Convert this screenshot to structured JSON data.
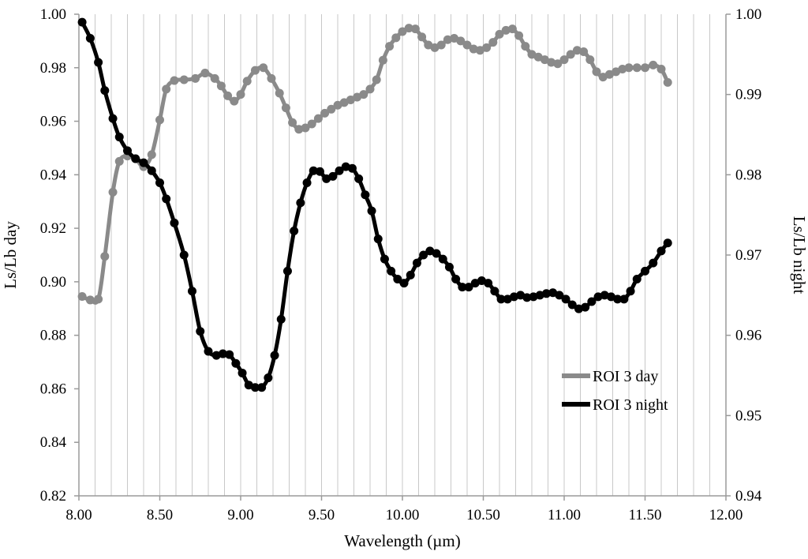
{
  "chart_data": {
    "type": "line",
    "xlabel": "Wavelength (µm)",
    "ylabel": "Ls/Lb day",
    "y2label": "Ls/Lb night",
    "xlim": [
      8.0,
      12.0
    ],
    "ylim": [
      0.82,
      1.0
    ],
    "y2lim": [
      0.94,
      1.0
    ],
    "x_ticks": [
      "8.00",
      "8.50",
      "9.00",
      "9.50",
      "10.00",
      "10.50",
      "11.00",
      "11.50",
      "12.00"
    ],
    "y_ticks": [
      "0.82",
      "0.84",
      "0.86",
      "0.88",
      "0.90",
      "0.92",
      "0.94",
      "0.96",
      "0.98",
      "1.00"
    ],
    "y2_ticks": [
      "0.94",
      "0.95",
      "0.96",
      "0.97",
      "0.98",
      "0.99",
      "1.00"
    ],
    "vertical_gridlines": true,
    "legend_position": "bottom-right",
    "series": [
      {
        "name": "ROI 3 day",
        "axis": "left",
        "color": "#8a8a8a",
        "x": [
          8.02,
          8.07,
          8.12,
          8.16,
          8.21,
          8.25,
          8.3,
          8.35,
          8.4,
          8.45,
          8.5,
          8.54,
          8.59,
          8.65,
          8.72,
          8.78,
          8.84,
          8.88,
          8.92,
          8.96,
          9.0,
          9.04,
          9.09,
          9.14,
          9.19,
          9.24,
          9.28,
          9.32,
          9.36,
          9.4,
          9.44,
          9.48,
          9.52,
          9.56,
          9.6,
          9.64,
          9.68,
          9.72,
          9.76,
          9.8,
          9.84,
          9.88,
          9.92,
          9.96,
          10.0,
          10.04,
          10.08,
          10.12,
          10.16,
          10.2,
          10.24,
          10.28,
          10.32,
          10.36,
          10.4,
          10.44,
          10.48,
          10.52,
          10.56,
          10.6,
          10.64,
          10.68,
          10.72,
          10.76,
          10.8,
          10.84,
          10.88,
          10.92,
          10.96,
          11.0,
          11.04,
          11.08,
          11.12,
          11.16,
          11.2,
          11.24,
          11.28,
          11.32,
          11.36,
          11.4,
          11.45,
          11.5,
          11.55,
          11.6,
          11.64
        ],
        "y": [
          0.8945,
          0.8932,
          0.8935,
          0.9095,
          0.9335,
          0.945,
          0.947,
          0.946,
          0.943,
          0.9475,
          0.9605,
          0.972,
          0.9752,
          0.9755,
          0.976,
          0.978,
          0.976,
          0.9732,
          0.9695,
          0.9675,
          0.97,
          0.975,
          0.979,
          0.98,
          0.976,
          0.9705,
          0.965,
          0.9595,
          0.957,
          0.9575,
          0.959,
          0.961,
          0.963,
          0.9645,
          0.966,
          0.967,
          0.968,
          0.969,
          0.97,
          0.972,
          0.9755,
          0.9828,
          0.988,
          0.9912,
          0.9935,
          0.9948,
          0.9945,
          0.9915,
          0.9885,
          0.9875,
          0.9885,
          0.9905,
          0.991,
          0.99,
          0.9885,
          0.987,
          0.9865,
          0.9875,
          0.9895,
          0.9925,
          0.994,
          0.9945,
          0.992,
          0.988,
          0.985,
          0.984,
          0.983,
          0.982,
          0.9815,
          0.983,
          0.985,
          0.9865,
          0.986,
          0.983,
          0.9785,
          0.9765,
          0.9775,
          0.9785,
          0.9795,
          0.98,
          0.98,
          0.98,
          0.981,
          0.9795,
          0.9745
        ]
      },
      {
        "name": "ROI 3 night",
        "axis": "right",
        "color": "#000000",
        "x": [
          8.02,
          8.07,
          8.12,
          8.16,
          8.21,
          8.25,
          8.3,
          8.35,
          8.4,
          8.45,
          8.5,
          8.54,
          8.59,
          8.65,
          8.7,
          8.75,
          8.8,
          8.85,
          8.89,
          8.93,
          8.97,
          9.01,
          9.05,
          9.09,
          9.13,
          9.17,
          9.21,
          9.25,
          9.29,
          9.33,
          9.37,
          9.41,
          9.45,
          9.49,
          9.53,
          9.57,
          9.61,
          9.65,
          9.69,
          9.73,
          9.77,
          9.81,
          9.85,
          9.89,
          9.93,
          9.97,
          10.01,
          10.05,
          10.09,
          10.13,
          10.17,
          10.21,
          10.25,
          10.29,
          10.33,
          10.37,
          10.41,
          10.45,
          10.49,
          10.53,
          10.57,
          10.61,
          10.65,
          10.69,
          10.73,
          10.77,
          10.81,
          10.85,
          10.89,
          10.93,
          10.97,
          11.01,
          11.05,
          11.09,
          11.13,
          11.17,
          11.21,
          11.25,
          11.29,
          11.33,
          11.37,
          11.41,
          11.45,
          11.5,
          11.55,
          11.6,
          11.64
        ],
        "y": [
          0.999,
          0.997,
          0.994,
          0.9905,
          0.987,
          0.9847,
          0.983,
          0.982,
          0.9815,
          0.9805,
          0.979,
          0.977,
          0.974,
          0.97,
          0.9655,
          0.9605,
          0.958,
          0.9575,
          0.9577,
          0.9576,
          0.9565,
          0.9553,
          0.9538,
          0.9535,
          0.9535,
          0.9547,
          0.9575,
          0.962,
          0.968,
          0.973,
          0.9765,
          0.979,
          0.9805,
          0.9804,
          0.9795,
          0.9798,
          0.9805,
          0.981,
          0.9808,
          0.9795,
          0.9775,
          0.9755,
          0.972,
          0.9695,
          0.968,
          0.967,
          0.9665,
          0.9675,
          0.969,
          0.97,
          0.9705,
          0.9702,
          0.9695,
          0.9685,
          0.967,
          0.966,
          0.966,
          0.9665,
          0.9668,
          0.9665,
          0.9655,
          0.9645,
          0.9645,
          0.9648,
          0.965,
          0.9647,
          0.9648,
          0.965,
          0.9652,
          0.9653,
          0.965,
          0.9645,
          0.9638,
          0.9633,
          0.9635,
          0.9642,
          0.9648,
          0.965,
          0.9648,
          0.9645,
          0.9645,
          0.9655,
          0.967,
          0.968,
          0.969,
          0.9705,
          0.9715
        ]
      }
    ]
  }
}
